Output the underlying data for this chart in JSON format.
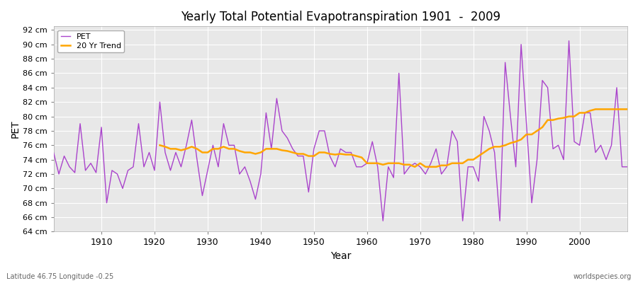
{
  "title": "Yearly Total Potential Evapotranspiration 1901  -  2009",
  "xlabel": "Year",
  "ylabel": "PET",
  "subtitle_left": "Latitude 46.75 Longitude -0.25",
  "subtitle_right": "worldspecies.org",
  "pet_color": "#AA44CC",
  "trend_color": "#FFA500",
  "fig_bg": "#FFFFFF",
  "plot_bg": "#E8E8E8",
  "ylim": [
    64,
    92
  ],
  "ytick_step": 2,
  "years": [
    1901,
    1902,
    1903,
    1904,
    1905,
    1906,
    1907,
    1908,
    1909,
    1910,
    1911,
    1912,
    1913,
    1914,
    1915,
    1916,
    1917,
    1918,
    1919,
    1920,
    1921,
    1922,
    1923,
    1924,
    1925,
    1926,
    1927,
    1928,
    1929,
    1930,
    1931,
    1932,
    1933,
    1934,
    1935,
    1936,
    1937,
    1938,
    1939,
    1940,
    1941,
    1942,
    1943,
    1944,
    1945,
    1946,
    1947,
    1948,
    1949,
    1950,
    1951,
    1952,
    1953,
    1954,
    1955,
    1956,
    1957,
    1958,
    1959,
    1960,
    1961,
    1962,
    1963,
    1964,
    1965,
    1966,
    1967,
    1968,
    1969,
    1970,
    1971,
    1972,
    1973,
    1974,
    1975,
    1976,
    1977,
    1978,
    1979,
    1980,
    1981,
    1982,
    1983,
    1984,
    1985,
    1986,
    1987,
    1988,
    1989,
    1990,
    1991,
    1992,
    1993,
    1994,
    1995,
    1996,
    1997,
    1998,
    1999,
    2000,
    2001,
    2002,
    2003,
    2004,
    2005,
    2006,
    2007,
    2008,
    2009
  ],
  "pet_values": [
    75.0,
    72.0,
    74.5,
    73.0,
    72.2,
    79.0,
    72.5,
    73.5,
    72.2,
    78.5,
    68.0,
    72.5,
    72.0,
    70.0,
    72.5,
    73.0,
    79.0,
    73.0,
    75.0,
    72.5,
    82.0,
    75.0,
    72.5,
    75.0,
    73.0,
    76.0,
    79.5,
    74.0,
    69.0,
    72.5,
    76.0,
    73.0,
    79.0,
    76.0,
    76.0,
    72.0,
    73.0,
    71.0,
    68.5,
    72.0,
    80.5,
    75.5,
    82.5,
    78.0,
    77.0,
    75.5,
    74.5,
    74.5,
    69.5,
    75.5,
    78.0,
    78.0,
    74.5,
    73.0,
    75.5,
    75.0,
    75.0,
    73.0,
    73.0,
    73.5,
    76.5,
    73.0,
    65.5,
    73.0,
    71.5,
    86.0,
    72.0,
    73.0,
    73.5,
    73.0,
    72.0,
    73.5,
    75.5,
    72.0,
    73.0,
    78.0,
    76.5,
    65.5,
    73.0,
    73.0,
    71.0,
    80.0,
    78.0,
    75.0,
    65.5,
    87.5,
    80.0,
    73.0,
    90.0,
    79.0,
    68.0,
    74.0,
    85.0,
    84.0,
    75.5,
    76.0,
    74.0,
    90.5,
    76.5,
    76.0,
    80.5,
    80.5,
    75.0,
    76.0,
    74.0,
    76.0,
    84.0,
    73.0,
    73.0
  ],
  "trend_years": [
    1921,
    1922,
    1923,
    1924,
    1925,
    1926,
    1927,
    1928,
    1929,
    1930,
    1931,
    1932,
    1933,
    1934,
    1935,
    1936,
    1937,
    1938,
    1939,
    1940,
    1941,
    1942,
    1943,
    1944,
    1945,
    1946,
    1947,
    1948,
    1949,
    1950,
    1951,
    1952,
    1953,
    1954,
    1955,
    1956,
    1957,
    1958,
    1959,
    1960,
    1961,
    1962,
    1963,
    1964,
    1965,
    1966,
    1967,
    1968,
    1969,
    1970,
    1971,
    1972,
    1973,
    1974,
    1975,
    1976,
    1977,
    1978,
    1979,
    1980,
    1981,
    1982,
    1983,
    1984,
    1985,
    1986,
    1987,
    1988,
    1989,
    1990,
    1991,
    1992,
    1993,
    1994,
    1995,
    1996,
    1997,
    1998,
    1999,
    2000,
    2001,
    2002,
    2003,
    2004,
    2005,
    2006,
    2007,
    2008,
    2009
  ],
  "trend_values": [
    76.0,
    75.8,
    75.5,
    75.5,
    75.3,
    75.5,
    75.8,
    75.5,
    75.0,
    75.0,
    75.5,
    75.5,
    75.8,
    75.5,
    75.5,
    75.2,
    75.0,
    75.0,
    74.8,
    75.0,
    75.5,
    75.5,
    75.5,
    75.3,
    75.2,
    75.0,
    74.8,
    74.8,
    74.5,
    74.5,
    75.0,
    75.0,
    74.8,
    74.7,
    74.8,
    74.7,
    74.7,
    74.5,
    74.3,
    73.5,
    73.5,
    73.5,
    73.3,
    73.5,
    73.5,
    73.5,
    73.3,
    73.3,
    73.0,
    73.5,
    73.0,
    73.0,
    73.0,
    73.2,
    73.2,
    73.5,
    73.5,
    73.5,
    74.0,
    74.0,
    74.5,
    75.0,
    75.5,
    75.8,
    75.8,
    76.0,
    76.3,
    76.5,
    76.8,
    77.5,
    77.5,
    78.0,
    78.5,
    79.5,
    79.5,
    79.7,
    79.8,
    80.0,
    80.0,
    80.5,
    80.5,
    80.8,
    81.0,
    81.0,
    81.0,
    81.0,
    81.0,
    81.0,
    81.0
  ]
}
